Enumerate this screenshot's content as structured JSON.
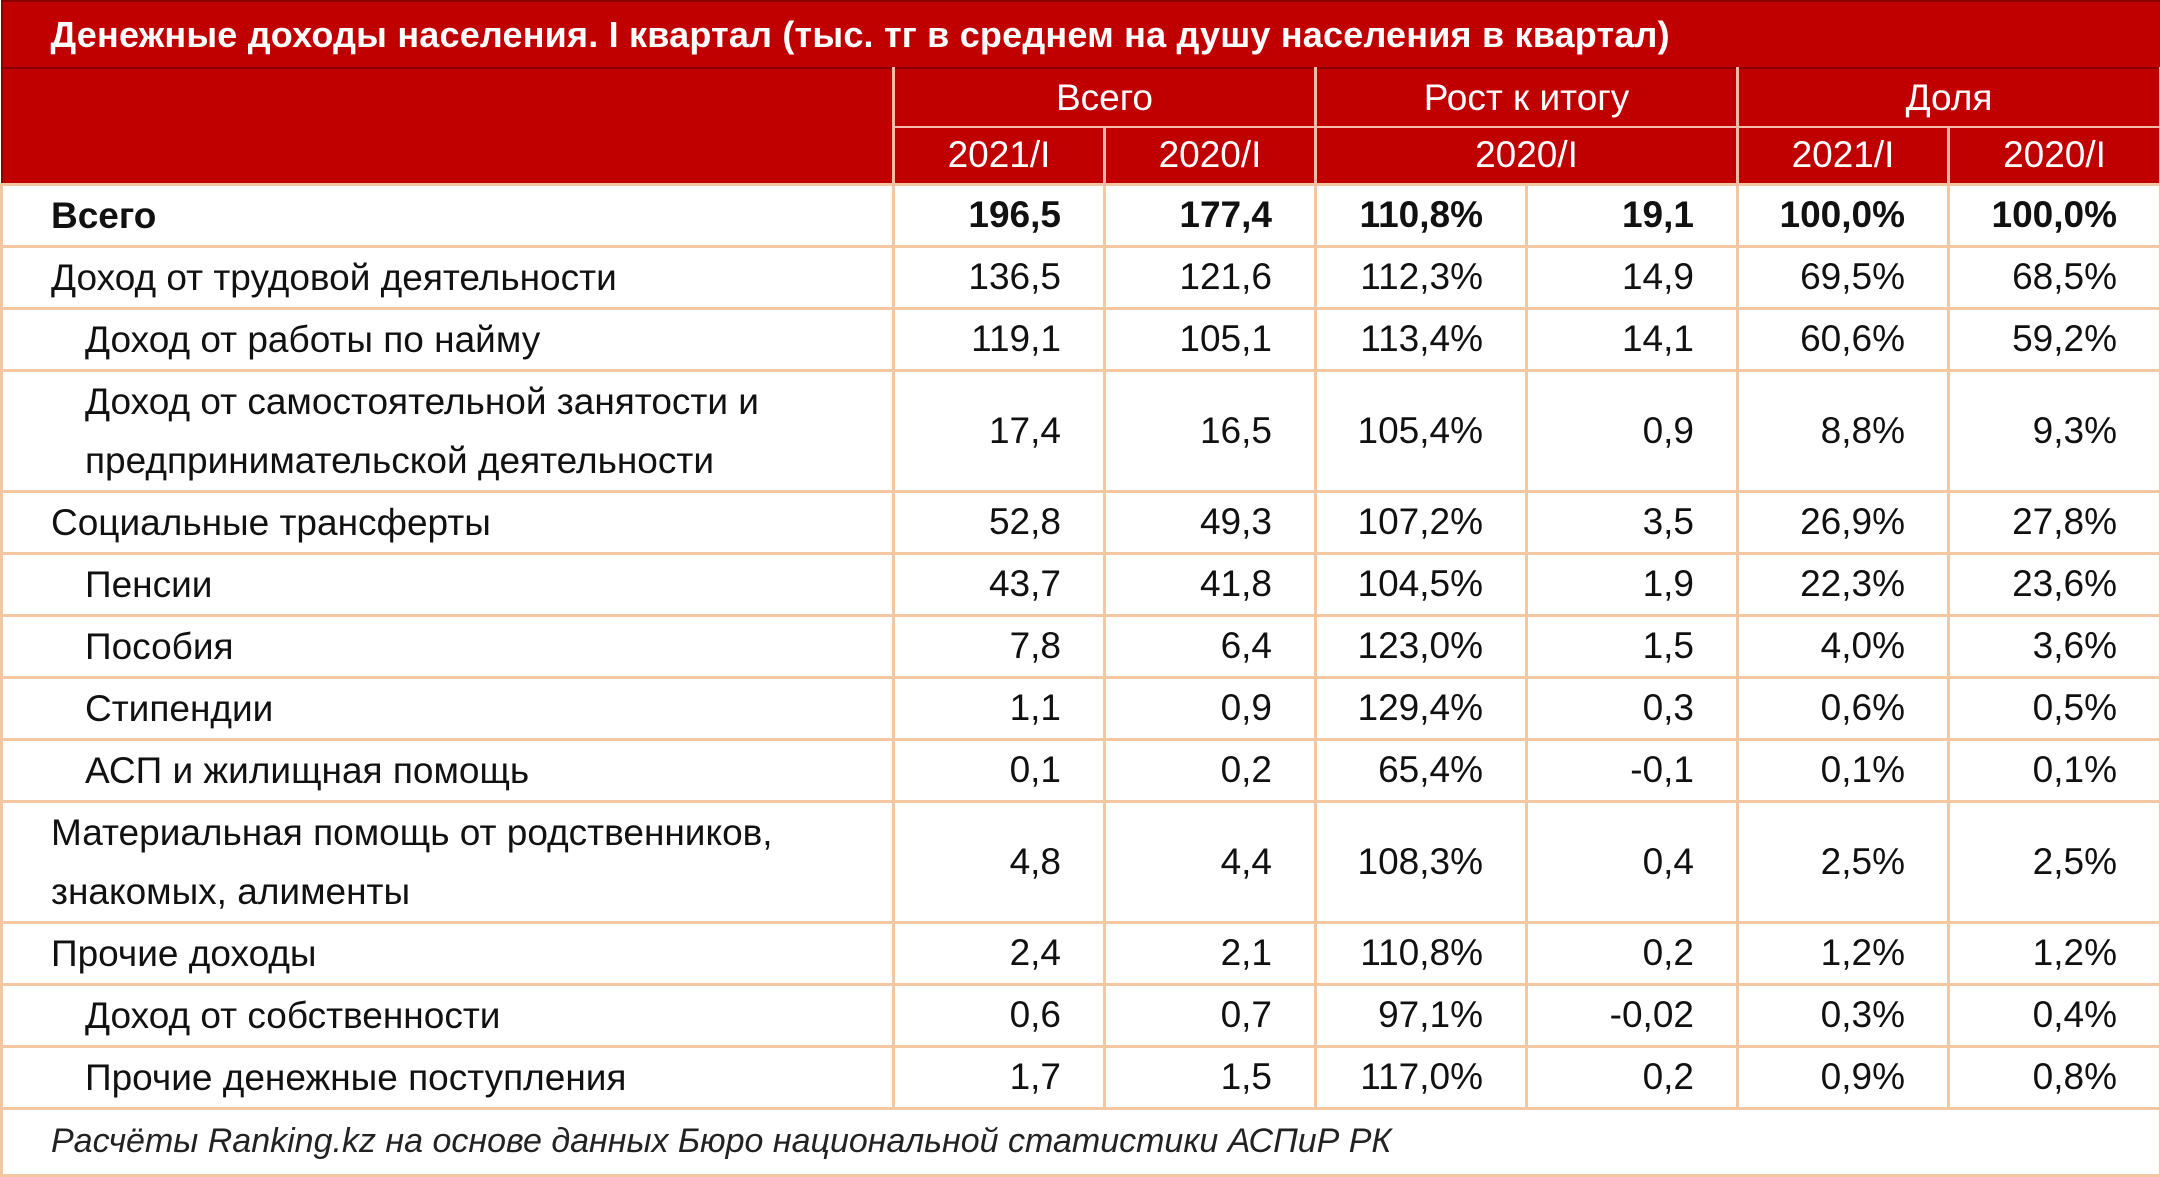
{
  "title": "Денежные доходы населения. I квартал (тыс. тг в среднем на душу населения в квартал)",
  "header": {
    "group_total": "Всего",
    "group_growth": "Рост к итогу",
    "group_share": "Доля",
    "sub_total_2021": "2021/I",
    "sub_total_2020": "2020/I",
    "sub_growth": "2020/I",
    "sub_share_2021": "2021/I",
    "sub_share_2020": "2020/I"
  },
  "rows": [
    {
      "label": "Всего",
      "v2021": "196,5",
      "v2020": "177,4",
      "growth_pct": "110,8%",
      "growth_abs": "19,1",
      "share2021": "100,0%",
      "share2020": "100,0%"
    },
    {
      "label": "Доход от трудовой деятельности",
      "v2021": "136,5",
      "v2020": "121,6",
      "growth_pct": "112,3%",
      "growth_abs": "14,9",
      "share2021": "69,5%",
      "share2020": "68,5%"
    },
    {
      "label": "Доход от работы по найму",
      "v2021": "119,1",
      "v2020": "105,1",
      "growth_pct": "113,4%",
      "growth_abs": "14,1",
      "share2021": "60,6%",
      "share2020": "59,2%"
    },
    {
      "label": "Доход от самостоятельной занятости и предпринимательской деятельности",
      "v2021": "17,4",
      "v2020": "16,5",
      "growth_pct": "105,4%",
      "growth_abs": "0,9",
      "share2021": "8,8%",
      "share2020": "9,3%"
    },
    {
      "label": "Социальные трансферты",
      "v2021": "52,8",
      "v2020": "49,3",
      "growth_pct": "107,2%",
      "growth_abs": "3,5",
      "share2021": "26,9%",
      "share2020": "27,8%"
    },
    {
      "label": "Пенсии",
      "v2021": "43,7",
      "v2020": "41,8",
      "growth_pct": "104,5%",
      "growth_abs": "1,9",
      "share2021": "22,3%",
      "share2020": "23,6%"
    },
    {
      "label": "Пособия",
      "v2021": "7,8",
      "v2020": "6,4",
      "growth_pct": "123,0%",
      "growth_abs": "1,5",
      "share2021": "4,0%",
      "share2020": "3,6%"
    },
    {
      "label": "Стипендии",
      "v2021": "1,1",
      "v2020": "0,9",
      "growth_pct": "129,4%",
      "growth_abs": "0,3",
      "share2021": "0,6%",
      "share2020": "0,5%"
    },
    {
      "label": "АСП и жилищная помощь",
      "v2021": "0,1",
      "v2020": "0,2",
      "growth_pct": "65,4%",
      "growth_abs": "-0,1",
      "share2021": "0,1%",
      "share2020": "0,1%"
    },
    {
      "label": "Материальная помощь от родственников, знакомых, алименты",
      "v2021": "4,8",
      "v2020": "4,4",
      "growth_pct": "108,3%",
      "growth_abs": "0,4",
      "share2021": "2,5%",
      "share2020": "2,5%"
    },
    {
      "label": "Прочие доходы",
      "v2021": "2,4",
      "v2020": "2,1",
      "growth_pct": "110,8%",
      "growth_abs": "0,2",
      "share2021": "1,2%",
      "share2020": "1,2%"
    },
    {
      "label": "Доход от собственности",
      "v2021": "0,6",
      "v2020": "0,7",
      "growth_pct": "97,1%",
      "growth_abs": "-0,02",
      "share2021": "0,3%",
      "share2020": "0,4%"
    },
    {
      "label": "Прочие денежные поступления",
      "v2021": "1,7",
      "v2020": "1,5",
      "growth_pct": "117,0%",
      "growth_abs": "0,2",
      "share2021": "0,9%",
      "share2020": "0,8%"
    }
  ],
  "source": "Расчёты Ranking.kz на основе данных Бюро национальной статистики АСПиР РК",
  "colors": {
    "header_bg": "#c00000",
    "grid": "#f4c7a3"
  }
}
